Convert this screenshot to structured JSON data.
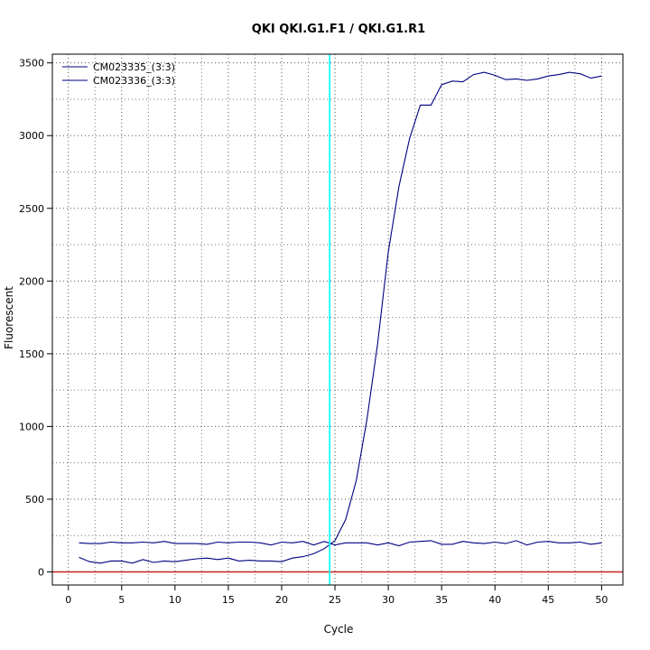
{
  "chart_data": {
    "type": "line",
    "title": "QKI  QKI.G1.F1 / QKI.G1.R1",
    "xlabel": "Cycle",
    "ylabel": "Fluorescent",
    "xlim": [
      -1.5,
      52
    ],
    "ylim": [
      -90,
      3560
    ],
    "xticks": [
      0,
      5,
      10,
      15,
      20,
      25,
      30,
      35,
      40,
      45,
      50
    ],
    "yticks": [
      0,
      500,
      1000,
      1500,
      2000,
      2500,
      3000,
      3500
    ],
    "grid": true,
    "legend_position": "top-left",
    "threshold_x": 24.5,
    "threshold_color": "#00ffff",
    "baseline_y": 0,
    "baseline_color": "#cc2222",
    "line_color": "#000080",
    "series": [
      {
        "name": "CM023335_(3:3)",
        "x": [
          1,
          2,
          3,
          4,
          5,
          6,
          7,
          8,
          9,
          10,
          11,
          12,
          13,
          14,
          15,
          16,
          17,
          18,
          19,
          20,
          21,
          22,
          23,
          24,
          25,
          26,
          27,
          28,
          29,
          30,
          31,
          32,
          33,
          34,
          35,
          36,
          37,
          38,
          39,
          40,
          41,
          42,
          43,
          44,
          45,
          46,
          47,
          48,
          49,
          50
        ],
        "values": [
          100,
          70,
          60,
          75,
          75,
          60,
          85,
          65,
          75,
          70,
          80,
          90,
          95,
          85,
          95,
          75,
          80,
          75,
          75,
          70,
          95,
          105,
          125,
          160,
          215,
          360,
          630,
          1050,
          1570,
          2200,
          2650,
          2980,
          3210,
          3210,
          3350,
          3375,
          3370,
          3420,
          3435,
          3415,
          3385,
          3390,
          3380,
          3390,
          3410,
          3420,
          3435,
          3425,
          3395,
          3410
        ]
      },
      {
        "name": "CM023336_(3:3)",
        "x": [
          1,
          2,
          3,
          4,
          5,
          6,
          7,
          8,
          9,
          10,
          11,
          12,
          13,
          14,
          15,
          16,
          17,
          18,
          19,
          20,
          21,
          22,
          23,
          24,
          25,
          26,
          27,
          28,
          29,
          30,
          31,
          32,
          33,
          34,
          35,
          36,
          37,
          38,
          39,
          40,
          41,
          42,
          43,
          44,
          45,
          46,
          47,
          48,
          49,
          50
        ],
        "values": [
          200,
          195,
          195,
          205,
          200,
          200,
          205,
          200,
          210,
          195,
          195,
          195,
          190,
          205,
          200,
          205,
          205,
          200,
          185,
          205,
          200,
          210,
          185,
          210,
          185,
          200,
          200,
          200,
          185,
          200,
          180,
          205,
          210,
          215,
          190,
          190,
          210,
          200,
          195,
          205,
          195,
          215,
          185,
          205,
          210,
          200,
          200,
          205,
          190,
          200
        ]
      }
    ]
  }
}
